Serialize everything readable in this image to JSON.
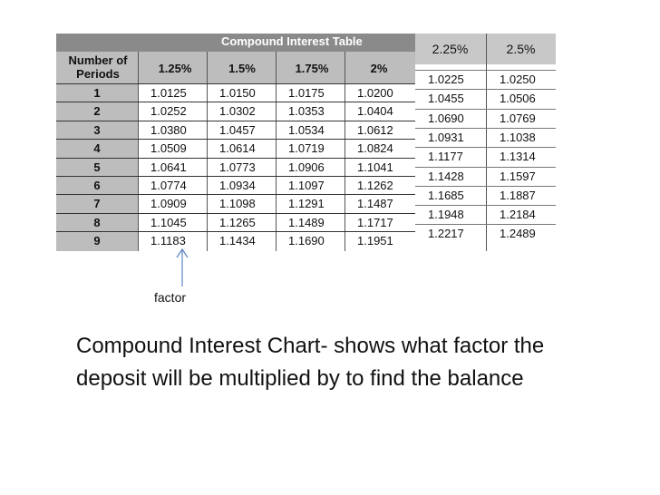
{
  "main_table": {
    "title": "Compound Interest Table",
    "periods_header": "Number of Periods",
    "rate_headers": [
      "1.25%",
      "1.5%",
      "1.75%",
      "2%"
    ],
    "rows": [
      {
        "period": "1",
        "values": [
          "1.0125",
          "1.0150",
          "1.0175",
          "1.0200"
        ]
      },
      {
        "period": "2",
        "values": [
          "1.0252",
          "1.0302",
          "1.0353",
          "1.0404"
        ]
      },
      {
        "period": "3",
        "values": [
          "1.0380",
          "1.0457",
          "1.0534",
          "1.0612"
        ]
      },
      {
        "period": "4",
        "values": [
          "1.0509",
          "1.0614",
          "1.0719",
          "1.0824"
        ]
      },
      {
        "period": "5",
        "values": [
          "1.0641",
          "1.0773",
          "1.0906",
          "1.1041"
        ]
      },
      {
        "period": "6",
        "values": [
          "1.0774",
          "1.0934",
          "1.1097",
          "1.1262"
        ]
      },
      {
        "period": "7",
        "values": [
          "1.0909",
          "1.1098",
          "1.1291",
          "1.1487"
        ]
      },
      {
        "period": "8",
        "values": [
          "1.1045",
          "1.1265",
          "1.1489",
          "1.1717"
        ]
      },
      {
        "period": "9",
        "values": [
          "1.1183",
          "1.1434",
          "1.1690",
          "1.1951"
        ]
      }
    ]
  },
  "ext_table": {
    "rate_headers": [
      "2.25%",
      "2.5%"
    ],
    "rows": [
      [
        "1.0225",
        "1.0250"
      ],
      [
        "1.0455",
        "1.0506"
      ],
      [
        "1.0690",
        "1.0769"
      ],
      [
        "1.0931",
        "1.1038"
      ],
      [
        "1.1177",
        "1.1314"
      ],
      [
        "1.1428",
        "1.1597"
      ],
      [
        "1.1685",
        "1.1887"
      ],
      [
        "1.1948",
        "1.2184"
      ],
      [
        "1.2217",
        "1.2489"
      ]
    ]
  },
  "annotation": {
    "label": "factor"
  },
  "caption": "Compound Interest Chart- shows what factor the deposit will be multiplied by to find the balance"
}
